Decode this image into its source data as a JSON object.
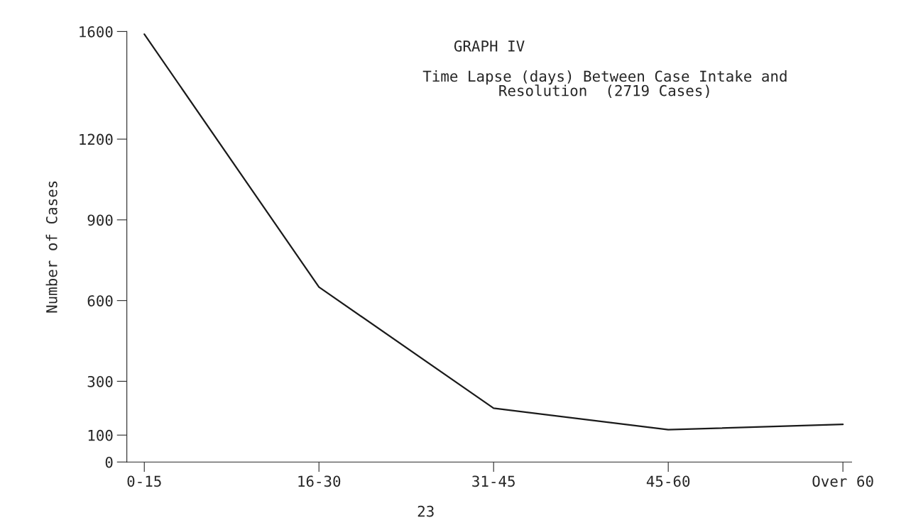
{
  "chart_data": {
    "type": "line",
    "title": "GRAPH IV",
    "subtitle": "Time Lapse (days) Between Case Intake and\nResolution  (2719 Cases)",
    "ylabel": "Number of Cases",
    "categories": [
      "0-15",
      "16-30",
      "31-45",
      "45-60",
      "Over 60"
    ],
    "series": [
      {
        "color": "#1a1a1a",
        "values": [
          1590,
          650,
          200,
          120,
          140
        ]
      }
    ],
    "ylim": [
      0,
      1600
    ],
    "yticks": [
      0,
      100,
      300,
      600,
      900,
      1200,
      1600
    ],
    "grid": false,
    "annotations": [
      "23"
    ]
  }
}
